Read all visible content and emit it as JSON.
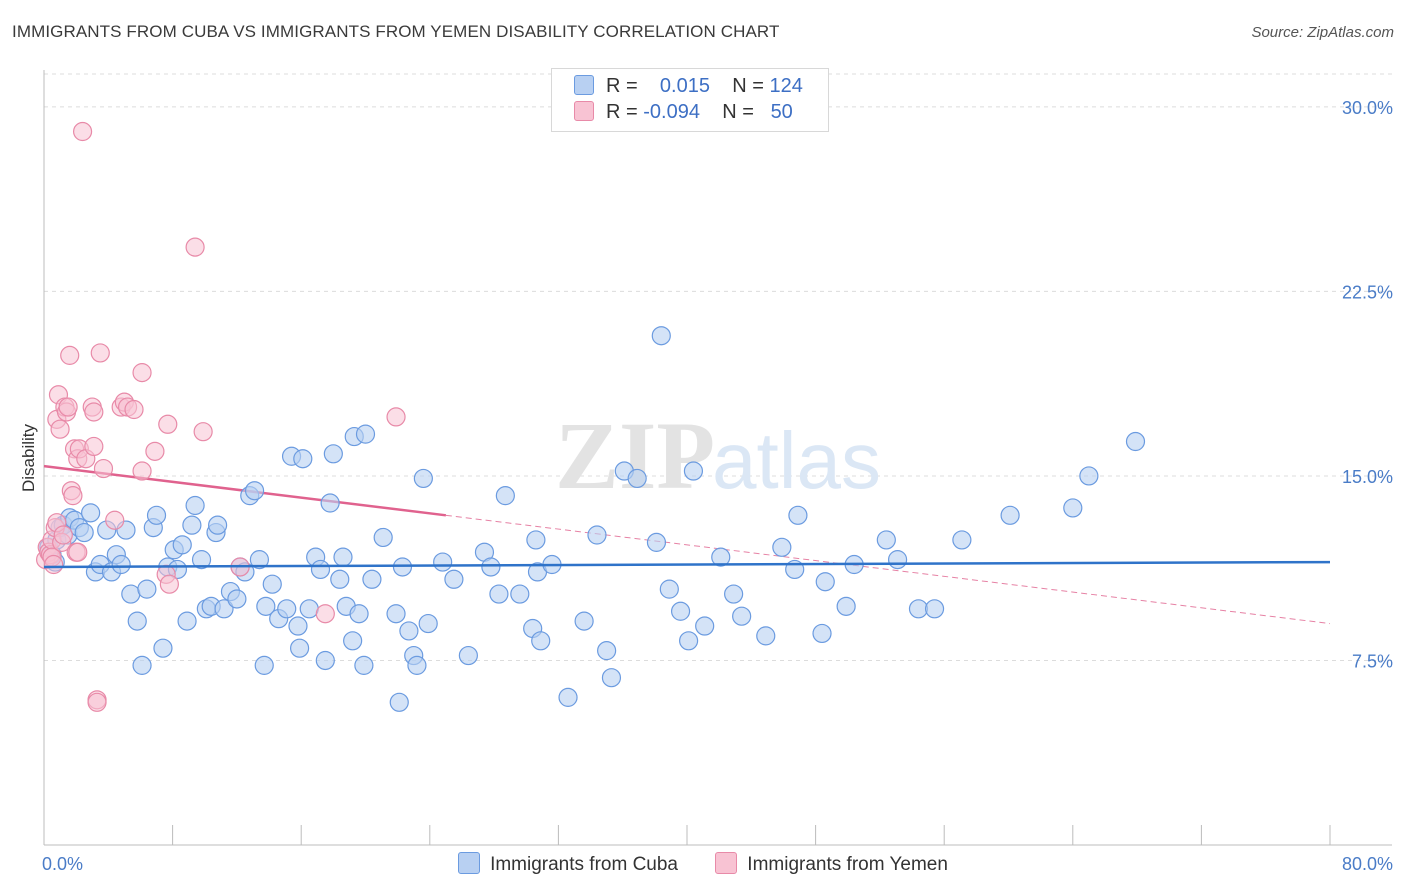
{
  "title": "IMMIGRANTS FROM CUBA VS IMMIGRANTS FROM YEMEN DISABILITY CORRELATION CHART",
  "source": "Source: ZipAtlas.com",
  "watermark": {
    "zip": "ZIP",
    "atlas": "atlas"
  },
  "legend": {
    "r_label": "R =",
    "n_label": "N =",
    "rows": [
      {
        "r": "0.015",
        "n": "124",
        "color": "#b8d0f2",
        "border": "#6b9be0"
      },
      {
        "r": "-0.094",
        "n": "50",
        "color": "#f8c3d3",
        "border": "#e88aa8"
      }
    ]
  },
  "colors": {
    "cuba_fill": "#b8d0f2",
    "cuba_stroke": "#6b9be0",
    "cuba_line": "#2f73c9",
    "yemen_fill": "#f8c3d3",
    "yemen_stroke": "#e88aa8",
    "yemen_line": "#e0628e",
    "axis_text": "#4a7cc7",
    "grid": "#dcdcdc"
  },
  "chart_data": {
    "type": "scatter",
    "title": "IMMIGRANTS FROM CUBA VS IMMIGRANTS FROM YEMEN DISABILITY CORRELATION CHART",
    "xlabel": "",
    "ylabel": "Disability",
    "xlim": [
      0,
      80
    ],
    "ylim": [
      0,
      31.5
    ],
    "x_tick_labels": [
      "0.0%",
      "80.0%"
    ],
    "y_ticks": [
      7.5,
      15.0,
      22.5,
      30.0
    ],
    "y_tick_labels": [
      "7.5%",
      "15.0%",
      "22.5%",
      "30.0%"
    ],
    "grid": true,
    "legend_position": "top-center",
    "series": [
      {
        "name": "Immigrants from Cuba",
        "r": 0.015,
        "n": 124,
        "trend": {
          "x": [
            0,
            80
          ],
          "y": [
            11.3,
            11.5
          ],
          "style": "solid"
        },
        "points": [
          [
            0.3,
            12.1
          ],
          [
            0.5,
            11.8
          ],
          [
            0.7,
            11.5
          ],
          [
            0.8,
            12.4
          ],
          [
            1.0,
            12.9
          ],
          [
            1.2,
            13.0
          ],
          [
            1.5,
            12.6
          ],
          [
            1.6,
            13.3
          ],
          [
            1.9,
            13.2
          ],
          [
            2.2,
            12.9
          ],
          [
            2.5,
            12.7
          ],
          [
            2.9,
            13.5
          ],
          [
            3.2,
            11.1
          ],
          [
            3.5,
            11.4
          ],
          [
            3.9,
            12.8
          ],
          [
            4.2,
            11.1
          ],
          [
            4.5,
            11.8
          ],
          [
            4.8,
            11.4
          ],
          [
            5.1,
            12.8
          ],
          [
            5.4,
            10.2
          ],
          [
            5.8,
            9.1
          ],
          [
            6.1,
            7.3
          ],
          [
            6.4,
            10.4
          ],
          [
            6.8,
            12.9
          ],
          [
            7.0,
            13.4
          ],
          [
            7.4,
            8.0
          ],
          [
            7.7,
            11.3
          ],
          [
            8.1,
            12.0
          ],
          [
            8.3,
            11.2
          ],
          [
            8.6,
            12.2
          ],
          [
            8.9,
            9.1
          ],
          [
            9.2,
            13.0
          ],
          [
            9.4,
            13.8
          ],
          [
            9.8,
            11.6
          ],
          [
            10.1,
            9.6
          ],
          [
            10.4,
            9.7
          ],
          [
            10.7,
            12.7
          ],
          [
            10.8,
            13.0
          ],
          [
            11.2,
            9.6
          ],
          [
            11.6,
            10.3
          ],
          [
            12.0,
            10.0
          ],
          [
            12.2,
            11.3
          ],
          [
            12.5,
            11.1
          ],
          [
            12.8,
            14.2
          ],
          [
            13.1,
            14.4
          ],
          [
            13.4,
            11.6
          ],
          [
            13.7,
            7.3
          ],
          [
            13.8,
            9.7
          ],
          [
            14.2,
            10.6
          ],
          [
            14.6,
            9.2
          ],
          [
            15.1,
            9.6
          ],
          [
            15.4,
            15.8
          ],
          [
            15.8,
            8.9
          ],
          [
            15.9,
            8.0
          ],
          [
            16.1,
            15.7
          ],
          [
            16.5,
            9.6
          ],
          [
            16.9,
            11.7
          ],
          [
            17.2,
            11.2
          ],
          [
            17.5,
            7.5
          ],
          [
            17.8,
            13.9
          ],
          [
            18.0,
            15.9
          ],
          [
            18.4,
            10.8
          ],
          [
            18.6,
            11.7
          ],
          [
            18.8,
            9.7
          ],
          [
            19.2,
            8.3
          ],
          [
            19.3,
            16.6
          ],
          [
            19.6,
            9.4
          ],
          [
            19.9,
            7.3
          ],
          [
            20.0,
            16.7
          ],
          [
            20.4,
            10.8
          ],
          [
            21.1,
            12.5
          ],
          [
            21.9,
            9.4
          ],
          [
            22.1,
            5.8
          ],
          [
            22.3,
            11.3
          ],
          [
            22.7,
            8.7
          ],
          [
            23.0,
            7.7
          ],
          [
            23.2,
            7.3
          ],
          [
            23.6,
            14.9
          ],
          [
            23.9,
            9.0
          ],
          [
            24.8,
            11.5
          ],
          [
            25.5,
            10.8
          ],
          [
            26.4,
            7.7
          ],
          [
            27.4,
            11.9
          ],
          [
            27.8,
            11.3
          ],
          [
            28.3,
            10.2
          ],
          [
            28.7,
            14.2
          ],
          [
            29.6,
            10.2
          ],
          [
            30.4,
            8.8
          ],
          [
            30.6,
            12.4
          ],
          [
            30.7,
            11.1
          ],
          [
            30.9,
            8.3
          ],
          [
            31.6,
            11.4
          ],
          [
            32.6,
            6.0
          ],
          [
            33.6,
            9.1
          ],
          [
            34.4,
            12.6
          ],
          [
            35.0,
            7.9
          ],
          [
            35.3,
            6.8
          ],
          [
            36.1,
            15.2
          ],
          [
            36.9,
            14.9
          ],
          [
            38.1,
            12.3
          ],
          [
            38.4,
            20.7
          ],
          [
            38.9,
            10.4
          ],
          [
            39.6,
            9.5
          ],
          [
            40.1,
            8.3
          ],
          [
            40.4,
            15.2
          ],
          [
            41.1,
            8.9
          ],
          [
            42.1,
            11.7
          ],
          [
            42.9,
            10.2
          ],
          [
            43.4,
            9.3
          ],
          [
            44.9,
            8.5
          ],
          [
            45.9,
            12.1
          ],
          [
            46.7,
            11.2
          ],
          [
            46.9,
            13.4
          ],
          [
            48.4,
            8.6
          ],
          [
            48.6,
            10.7
          ],
          [
            49.9,
            9.7
          ],
          [
            50.4,
            11.4
          ],
          [
            52.4,
            12.4
          ],
          [
            53.1,
            11.6
          ],
          [
            54.4,
            9.6
          ],
          [
            55.4,
            9.6
          ],
          [
            57.1,
            12.4
          ],
          [
            60.1,
            13.4
          ],
          [
            64.0,
            13.7
          ],
          [
            65.0,
            15.0
          ],
          [
            67.9,
            16.4
          ]
        ]
      },
      {
        "name": "Immigrants from Yemen",
        "r": -0.094,
        "n": 50,
        "trend": {
          "x": [
            0,
            25
          ],
          "y": [
            15.4,
            13.4
          ],
          "style": "solid",
          "dashed_extension": {
            "x": [
              25,
              80
            ],
            "y": [
              13.4,
              9.0
            ]
          }
        },
        "points": [
          [
            0.1,
            11.6
          ],
          [
            0.2,
            12.1
          ],
          [
            0.3,
            11.9
          ],
          [
            0.4,
            11.8
          ],
          [
            0.5,
            12.4
          ],
          [
            0.5,
            11.7
          ],
          [
            0.6,
            11.4
          ],
          [
            0.7,
            12.9
          ],
          [
            0.8,
            13.1
          ],
          [
            0.8,
            17.3
          ],
          [
            0.9,
            18.3
          ],
          [
            1.0,
            16.9
          ],
          [
            1.1,
            12.3
          ],
          [
            1.2,
            12.6
          ],
          [
            1.3,
            17.8
          ],
          [
            1.4,
            17.6
          ],
          [
            1.5,
            17.8
          ],
          [
            1.6,
            19.9
          ],
          [
            1.7,
            14.4
          ],
          [
            1.8,
            14.2
          ],
          [
            1.9,
            16.1
          ],
          [
            2.0,
            11.9
          ],
          [
            2.1,
            15.7
          ],
          [
            2.1,
            11.9
          ],
          [
            2.2,
            16.1
          ],
          [
            2.4,
            29.0
          ],
          [
            2.6,
            15.7
          ],
          [
            3.0,
            17.8
          ],
          [
            3.1,
            17.6
          ],
          [
            3.1,
            16.2
          ],
          [
            3.3,
            5.9
          ],
          [
            3.3,
            5.8
          ],
          [
            3.5,
            20.0
          ],
          [
            3.7,
            15.3
          ],
          [
            4.4,
            13.2
          ],
          [
            4.8,
            17.8
          ],
          [
            5.0,
            18.0
          ],
          [
            5.2,
            17.8
          ],
          [
            5.6,
            17.7
          ],
          [
            6.1,
            19.2
          ],
          [
            6.1,
            15.2
          ],
          [
            6.9,
            16.0
          ],
          [
            7.6,
            11.0
          ],
          [
            7.7,
            17.1
          ],
          [
            7.8,
            10.6
          ],
          [
            9.4,
            24.3
          ],
          [
            9.9,
            16.8
          ],
          [
            12.2,
            11.3
          ],
          [
            17.5,
            9.4
          ],
          [
            21.9,
            17.4
          ]
        ]
      }
    ]
  },
  "bottom_legend": [
    "Immigrants from Cuba",
    "Immigrants from Yemen"
  ]
}
